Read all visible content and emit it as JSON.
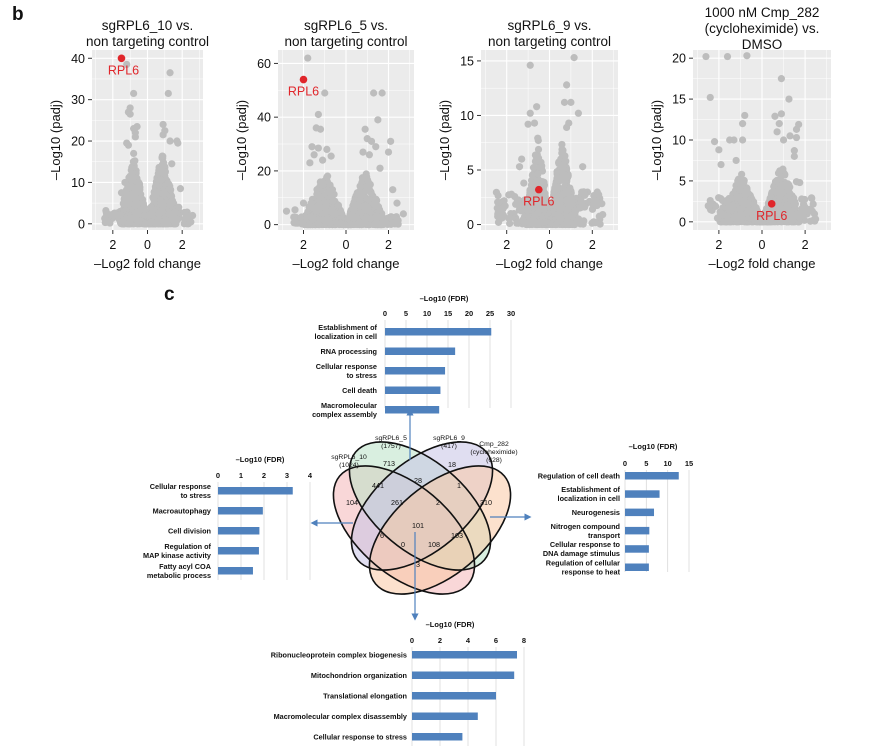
{
  "panels": {
    "b_label": "b",
    "c_label": "c"
  },
  "chart_data": [
    {
      "id": "volcano-sgRPL6_10",
      "type": "scatter",
      "title_lines": [
        "sgRPL6_10 vs.",
        "non targeting control"
      ],
      "xlabel": "–Log2 fold change",
      "ylabel": "–Log10 (padj)",
      "xlim": [
        -3.2,
        3.2
      ],
      "ylim": [
        -1.5,
        42
      ],
      "xticks": [
        -2,
        0,
        2
      ],
      "xtick_labels": [
        "2",
        "0",
        "2"
      ],
      "yticks": [
        0,
        10,
        20,
        30,
        40
      ],
      "ytick_labels": [
        "0",
        "10",
        "20",
        "30",
        "40"
      ],
      "grid": true,
      "highlight": {
        "label": "RPL6",
        "x": -1.5,
        "y": 40,
        "color": "#e0262b"
      },
      "outliers": [
        [
          -1.2,
          38.5
        ],
        [
          -0.8,
          31.5
        ],
        [
          -1.0,
          28
        ],
        [
          -1.1,
          27
        ],
        [
          -1.0,
          26.5
        ],
        [
          -0.6,
          23.5
        ],
        [
          -0.8,
          23
        ],
        [
          -0.7,
          22
        ],
        [
          -0.7,
          21
        ],
        [
          -1.2,
          19.5
        ],
        [
          -1.1,
          19
        ],
        [
          -0.8,
          17
        ],
        [
          -2.4,
          3.2
        ],
        [
          1.3,
          36.5
        ],
        [
          1.2,
          31.5
        ],
        [
          0.9,
          24
        ],
        [
          1.0,
          22.5
        ],
        [
          0.9,
          21.5
        ],
        [
          1.3,
          20
        ],
        [
          1.7,
          20
        ],
        [
          1.75,
          19.5
        ],
        [
          1.4,
          14.5
        ],
        [
          1.9,
          8.5
        ],
        [
          2.6,
          2
        ],
        [
          -1.5,
          7.5
        ],
        [
          -1.3,
          10
        ],
        [
          1.8,
          4
        ]
      ],
      "cloud_left": {
        "peak_x": -0.8,
        "peak_y": 16
      },
      "cloud_right": {
        "peak_x": 0.85,
        "peak_y": 17
      },
      "point_color": "#bdbdbd",
      "panel_bg": "#ebebeb"
    },
    {
      "id": "volcano-sgRPL6_5",
      "type": "scatter",
      "title_lines": [
        "sgRPL6_5 vs.",
        "non targeting control"
      ],
      "xlabel": "–Log2 fold change",
      "ylabel": "–Log10 (padj)",
      "xlim": [
        -3.2,
        3.2
      ],
      "ylim": [
        -2,
        65
      ],
      "xticks": [
        -2,
        0,
        2
      ],
      "xtick_labels": [
        "2",
        "0",
        "2"
      ],
      "yticks": [
        0,
        20,
        40,
        60
      ],
      "ytick_labels": [
        "0",
        "20",
        "40",
        "60"
      ],
      "grid": true,
      "highlight": {
        "label": "RPL6",
        "x": -2.0,
        "y": 54,
        "color": "#e0262b"
      },
      "outliers": [
        [
          -1.8,
          62
        ],
        [
          -1.0,
          49
        ],
        [
          -1.3,
          41
        ],
        [
          -1.4,
          36
        ],
        [
          -1.2,
          35.5
        ],
        [
          -1.6,
          29
        ],
        [
          -1.3,
          28.5
        ],
        [
          -0.9,
          28
        ],
        [
          -1.5,
          26
        ],
        [
          -0.7,
          25.5
        ],
        [
          -1.1,
          24
        ],
        [
          -1.7,
          23
        ],
        [
          -2.8,
          5
        ],
        [
          -2.4,
          5.5
        ],
        [
          1.3,
          49
        ],
        [
          1.7,
          49
        ],
        [
          1.5,
          39
        ],
        [
          0.9,
          35.5
        ],
        [
          1.0,
          32
        ],
        [
          1.2,
          31
        ],
        [
          2.1,
          31
        ],
        [
          1.4,
          29
        ],
        [
          0.8,
          27
        ],
        [
          1.1,
          26
        ],
        [
          2.0,
          27
        ],
        [
          1.6,
          21
        ],
        [
          2.2,
          13
        ],
        [
          2.4,
          8
        ],
        [
          2.7,
          4
        ],
        [
          -2.0,
          8
        ]
      ],
      "cloud_left": {
        "peak_x": -1.0,
        "peak_y": 20
      },
      "cloud_right": {
        "peak_x": 0.9,
        "peak_y": 20
      },
      "point_color": "#bdbdbd",
      "panel_bg": "#ebebeb"
    },
    {
      "id": "volcano-sgRPL6_9",
      "type": "scatter",
      "title_lines": [
        "sgRPL6_9 vs.",
        "non targeting control"
      ],
      "xlabel": "–Log2 fold change",
      "ylabel": "–Log10 (padj)",
      "xlim": [
        -3.2,
        3.2
      ],
      "ylim": [
        -0.5,
        16
      ],
      "xticks": [
        -2,
        0,
        2
      ],
      "xtick_labels": [
        "2",
        "0",
        "2"
      ],
      "yticks": [
        0,
        5,
        10,
        15
      ],
      "ytick_labels": [
        "0",
        "5",
        "10",
        "15"
      ],
      "grid": true,
      "highlight": {
        "label": "RPL6",
        "x": -0.5,
        "y": 3.2,
        "color": "#e0262b"
      },
      "outliers": [
        [
          -0.9,
          14.6
        ],
        [
          -0.6,
          10.8
        ],
        [
          -0.9,
          10.2
        ],
        [
          -1.0,
          9.2
        ],
        [
          -0.7,
          9.3
        ],
        [
          -1.3,
          6
        ],
        [
          -1.4,
          5.3
        ],
        [
          -1.5,
          2.2
        ],
        [
          1.15,
          15.3
        ],
        [
          0.8,
          12.8
        ],
        [
          0.7,
          11.2
        ],
        [
          1.0,
          11.2
        ],
        [
          1.35,
          10.2
        ],
        [
          0.9,
          9.3
        ],
        [
          0.8,
          8.9
        ],
        [
          1.55,
          5.3
        ],
        [
          1.6,
          3
        ],
        [
          1.5,
          2
        ],
        [
          -1.2,
          3.8
        ]
      ],
      "cloud_left": {
        "peak_x": -0.55,
        "peak_y": 8
      },
      "cloud_right": {
        "peak_x": 0.6,
        "peak_y": 8
      },
      "point_color": "#bdbdbd",
      "panel_bg": "#ebebeb"
    },
    {
      "id": "volcano-Cmp_282",
      "type": "scatter",
      "title_lines": [
        "1000 nM Cmp_282",
        "(cycloheximide) vs.",
        "DMSO"
      ],
      "xlabel": "–Log2 fold change",
      "ylabel": "–Log10 (padj)",
      "xlim": [
        -3.2,
        3.2
      ],
      "ylim": [
        -1,
        21
      ],
      "xticks": [
        -2,
        0,
        2
      ],
      "xtick_labels": [
        "2",
        "0",
        "2"
      ],
      "yticks": [
        0,
        5,
        10,
        15,
        20
      ],
      "ytick_labels": [
        "0",
        "5",
        "10",
        "15",
        "20"
      ],
      "grid": true,
      "highlight": {
        "label": "RPL6",
        "x": 0.45,
        "y": 2.2,
        "color": "#e0262b"
      },
      "outliers": [
        [
          -2.6,
          20.2
        ],
        [
          -1.6,
          20.2
        ],
        [
          -0.7,
          20.3
        ],
        [
          -2.4,
          15.2
        ],
        [
          -2.2,
          9.8
        ],
        [
          -1.5,
          10
        ],
        [
          -1.3,
          10
        ],
        [
          -0.8,
          13
        ],
        [
          -0.9,
          12
        ],
        [
          -0.9,
          10
        ],
        [
          -2.0,
          8.8
        ],
        [
          -1.9,
          7
        ],
        [
          -1.2,
          7.5
        ],
        [
          0.9,
          17.5
        ],
        [
          1.25,
          15
        ],
        [
          0.6,
          12.9
        ],
        [
          0.9,
          13.2
        ],
        [
          0.8,
          12
        ],
        [
          1.7,
          11.9
        ],
        [
          1.6,
          11.3
        ],
        [
          1.6,
          10.3
        ],
        [
          1.3,
          10.5
        ],
        [
          1.0,
          10
        ],
        [
          0.7,
          11
        ],
        [
          1.5,
          8.7
        ],
        [
          1.5,
          8
        ],
        [
          1.6,
          4.9
        ],
        [
          1.75,
          4.8
        ]
      ],
      "cloud_left": {
        "peak_x": -1.0,
        "peak_y": 6
      },
      "cloud_right": {
        "peak_x": 0.9,
        "peak_y": 7
      },
      "point_color": "#bdbdbd",
      "panel_bg": "#ebebeb"
    },
    {
      "id": "go-bar-top",
      "type": "bar",
      "orientation": "horizontal",
      "title": "–Log10 (FDR)",
      "categories": [
        "Establishment of\nlocalization in cell",
        "RNA processing",
        "Cellular response\nto stress",
        "Cell death",
        "Macromolecular\ncomplex assembly"
      ],
      "values": [
        25.3,
        16.7,
        14.3,
        13.2,
        12.9
      ],
      "xlim": [
        0,
        30
      ],
      "xticks": [
        0,
        5,
        10,
        15,
        20,
        25,
        30
      ],
      "bar_color": "#4f81bd"
    },
    {
      "id": "go-bar-left",
      "type": "bar",
      "orientation": "horizontal",
      "title": "–Log10 (FDR)",
      "categories": [
        "Cellular response\nto stress",
        "Macroautophagy",
        "Cell division",
        "Regulation of\nMAP kinase activity",
        "Fatty acyl COA\nmetabolic process"
      ],
      "values": [
        3.25,
        1.95,
        1.8,
        1.78,
        1.52
      ],
      "xlim": [
        0,
        4
      ],
      "xticks": [
        0,
        1,
        2,
        3,
        4
      ],
      "bar_color": "#4f81bd"
    },
    {
      "id": "go-bar-right",
      "type": "bar",
      "orientation": "horizontal",
      "title": "–Log10 (FDR)",
      "categories": [
        "Regulation of cell death",
        "Establishment of\nlocalization in cell",
        "Neurogenesis",
        "Nitrogen compound\ntransport",
        "Cellular response to\nDNA damage stimulus",
        "Regulation of cellular\nresponse to heat"
      ],
      "values": [
        12.6,
        8.1,
        6.8,
        5.7,
        5.6,
        5.6
      ],
      "xlim": [
        0,
        15
      ],
      "xticks": [
        0,
        5,
        10,
        15
      ],
      "bar_color": "#4f81bd"
    },
    {
      "id": "go-bar-bottom",
      "type": "bar",
      "orientation": "horizontal",
      "title": "–Log10 (FDR)",
      "categories": [
        "Ribonucleoprotein complex biogenesis",
        "Mitochondrion organization",
        "Translational elongation",
        "Macromolecular complex disassembly",
        "Cellular response to stress"
      ],
      "values": [
        7.5,
        7.3,
        6.0,
        4.7,
        3.6
      ],
      "xlim": [
        0,
        8
      ],
      "xticks": [
        0,
        2,
        4,
        6,
        8
      ],
      "bar_color": "#4f81bd"
    }
  ],
  "venn": {
    "sets": [
      {
        "name": "sgRPL6_10",
        "size": "(1024)",
        "color": "#f4b6b8"
      },
      {
        "name": "sgRPL6_5",
        "size": "(1757)",
        "color": "#b9e2c6"
      },
      {
        "name": "sgRPL6_9",
        "size": "(417)",
        "color": "#c6c2e6"
      },
      {
        "name": "Cmp_282",
        "extra": "(cycloheximide)",
        "size": "(628)",
        "color": "#f9c9a4"
      }
    ],
    "regions": [
      {
        "id": "only-10",
        "value": "104"
      },
      {
        "id": "only-5",
        "value": "713"
      },
      {
        "id": "only-9",
        "value": "18"
      },
      {
        "id": "only-cmp",
        "value": "310"
      },
      {
        "id": "10-5",
        "value": "441"
      },
      {
        "id": "5-9",
        "value": "28"
      },
      {
        "id": "9-cmp",
        "value": "1"
      },
      {
        "id": "10-5-9",
        "value": "261"
      },
      {
        "id": "5-9-cmp",
        "value": "2"
      },
      {
        "id": "all",
        "value": "101"
      },
      {
        "id": "10-9",
        "value": "6"
      },
      {
        "id": "5-cmp",
        "value": "103"
      },
      {
        "id": "10-9-cmp",
        "value": "0"
      },
      {
        "id": "10-5-cmp",
        "value": "108"
      },
      {
        "id": "10-cmp",
        "value": "3"
      }
    ]
  }
}
